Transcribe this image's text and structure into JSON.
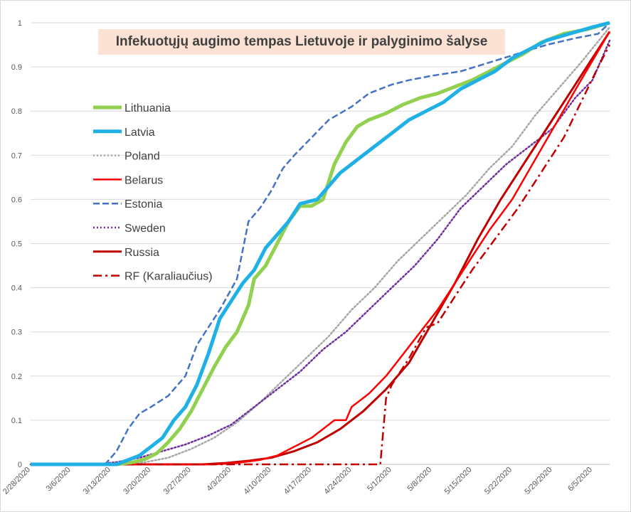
{
  "chart_data": {
    "type": "line",
    "title": "Infekuotųjų augimo tempas Lietuvoje ir palyginimo šalyse",
    "xlabel": "",
    "ylabel": "",
    "ylim": [
      0,
      1
    ],
    "y_ticks": [
      "0",
      "0.1",
      "0.2",
      "0.3",
      "0.4",
      "0.5",
      "0.6",
      "0.7",
      "0.8",
      "0.9",
      "1"
    ],
    "x_tick_labels": [
      "2/28/2020",
      "3/6/2020",
      "3/13/2020",
      "3/20/2020",
      "3/27/2020",
      "4/3/2020",
      "4/10/2020",
      "4/17/2020",
      "4/24/2020",
      "5/1/2020",
      "5/8/2020",
      "5/15/2020",
      "5/22/2020",
      "5/29/2020",
      "6/5/2020"
    ],
    "x_range": [
      "2/28/2020",
      "6/8/2020"
    ],
    "grid": "horizontal",
    "legend_position": "left",
    "series": [
      {
        "name": "Lithuania",
        "color": "#92d050",
        "style": "solid",
        "width": 5,
        "points": [
          [
            "2/28/2020",
            0
          ],
          [
            "3/14/2020",
            0
          ],
          [
            "3/17/2020",
            0.005
          ],
          [
            "3/19/2020",
            0.012
          ],
          [
            "3/21/2020",
            0.025
          ],
          [
            "3/23/2020",
            0.05
          ],
          [
            "3/25/2020",
            0.08
          ],
          [
            "3/27/2020",
            0.12
          ],
          [
            "3/29/2020",
            0.17
          ],
          [
            "3/31/2020",
            0.22
          ],
          [
            "4/2/2020",
            0.265
          ],
          [
            "4/4/2020",
            0.3
          ],
          [
            "4/6/2020",
            0.36
          ],
          [
            "4/7/2020",
            0.42
          ],
          [
            "4/9/2020",
            0.45
          ],
          [
            "4/11/2020",
            0.5
          ],
          [
            "4/13/2020",
            0.55
          ],
          [
            "4/15/2020",
            0.585
          ],
          [
            "4/17/2020",
            0.585
          ],
          [
            "4/19/2020",
            0.6
          ],
          [
            "4/21/2020",
            0.68
          ],
          [
            "4/23/2020",
            0.73
          ],
          [
            "4/25/2020",
            0.765
          ],
          [
            "4/27/2020",
            0.78
          ],
          [
            "4/30/2020",
            0.795
          ],
          [
            "5/3/2020",
            0.815
          ],
          [
            "5/6/2020",
            0.83
          ],
          [
            "5/9/2020",
            0.84
          ],
          [
            "5/12/2020",
            0.855
          ],
          [
            "5/15/2020",
            0.87
          ],
          [
            "5/18/2020",
            0.89
          ],
          [
            "5/21/2020",
            0.91
          ],
          [
            "5/24/2020",
            0.93
          ],
          [
            "5/27/2020",
            0.955
          ],
          [
            "5/31/2020",
            0.975
          ],
          [
            "6/4/2020",
            0.985
          ],
          [
            "6/8/2020",
            1
          ]
        ]
      },
      {
        "name": "Latvia",
        "color": "#1fb1e6",
        "style": "solid",
        "width": 5,
        "points": [
          [
            "2/28/2020",
            0
          ],
          [
            "3/14/2020",
            0
          ],
          [
            "3/16/2020",
            0.01
          ],
          [
            "3/18/2020",
            0.02
          ],
          [
            "3/20/2020",
            0.04
          ],
          [
            "3/22/2020",
            0.06
          ],
          [
            "3/24/2020",
            0.1
          ],
          [
            "3/26/2020",
            0.13
          ],
          [
            "3/28/2020",
            0.18
          ],
          [
            "3/30/2020",
            0.25
          ],
          [
            "4/1/2020",
            0.33
          ],
          [
            "4/3/2020",
            0.37
          ],
          [
            "4/5/2020",
            0.41
          ],
          [
            "4/7/2020",
            0.44
          ],
          [
            "4/9/2020",
            0.49
          ],
          [
            "4/11/2020",
            0.52
          ],
          [
            "4/13/2020",
            0.55
          ],
          [
            "4/15/2020",
            0.59
          ],
          [
            "4/18/2020",
            0.6
          ],
          [
            "4/20/2020",
            0.63
          ],
          [
            "4/22/2020",
            0.66
          ],
          [
            "4/25/2020",
            0.69
          ],
          [
            "4/28/2020",
            0.72
          ],
          [
            "5/1/2020",
            0.75
          ],
          [
            "5/4/2020",
            0.78
          ],
          [
            "5/7/2020",
            0.8
          ],
          [
            "5/10/2020",
            0.82
          ],
          [
            "5/13/2020",
            0.85
          ],
          [
            "5/16/2020",
            0.87
          ],
          [
            "5/19/2020",
            0.89
          ],
          [
            "5/22/2020",
            0.92
          ],
          [
            "5/25/2020",
            0.94
          ],
          [
            "5/28/2020",
            0.96
          ],
          [
            "6/1/2020",
            0.975
          ],
          [
            "6/5/2020",
            0.99
          ],
          [
            "6/8/2020",
            1
          ]
        ]
      },
      {
        "name": "Poland",
        "color": "#a6a6a6",
        "style": "dotted",
        "width": 2.5,
        "points": [
          [
            "2/28/2020",
            0
          ],
          [
            "3/15/2020",
            0
          ],
          [
            "3/19/2020",
            0.005
          ],
          [
            "3/23/2020",
            0.015
          ],
          [
            "3/27/2020",
            0.035
          ],
          [
            "3/31/2020",
            0.06
          ],
          [
            "4/4/2020",
            0.095
          ],
          [
            "4/8/2020",
            0.14
          ],
          [
            "4/12/2020",
            0.19
          ],
          [
            "4/16/2020",
            0.24
          ],
          [
            "4/20/2020",
            0.29
          ],
          [
            "4/24/2020",
            0.35
          ],
          [
            "4/28/2020",
            0.4
          ],
          [
            "5/2/2020",
            0.46
          ],
          [
            "5/6/2020",
            0.51
          ],
          [
            "5/10/2020",
            0.56
          ],
          [
            "5/14/2020",
            0.61
          ],
          [
            "5/18/2020",
            0.67
          ],
          [
            "5/22/2020",
            0.72
          ],
          [
            "5/26/2020",
            0.79
          ],
          [
            "5/30/2020",
            0.85
          ],
          [
            "6/3/2020",
            0.91
          ],
          [
            "6/8/2020",
            0.99
          ]
        ]
      },
      {
        "name": "Belarus",
        "color": "#ff0000",
        "style": "solid",
        "width": 2.5,
        "points": [
          [
            "2/28/2020",
            0
          ],
          [
            "3/31/2020",
            0
          ],
          [
            "4/4/2020",
            0.003
          ],
          [
            "4/8/2020",
            0.01
          ],
          [
            "4/11/2020",
            0.02
          ],
          [
            "4/14/2020",
            0.04
          ],
          [
            "4/17/2020",
            0.06
          ],
          [
            "4/20/2020",
            0.09
          ],
          [
            "4/21/2020",
            0.1
          ],
          [
            "4/23/2020",
            0.1
          ],
          [
            "4/24/2020",
            0.13
          ],
          [
            "4/27/2020",
            0.16
          ],
          [
            "4/30/2020",
            0.2
          ],
          [
            "5/3/2020",
            0.25
          ],
          [
            "5/6/2020",
            0.3
          ],
          [
            "5/9/2020",
            0.35
          ],
          [
            "5/12/2020",
            0.41
          ],
          [
            "5/15/2020",
            0.47
          ],
          [
            "5/18/2020",
            0.53
          ],
          [
            "5/22/2020",
            0.6
          ],
          [
            "5/26/2020",
            0.69
          ],
          [
            "5/30/2020",
            0.78
          ],
          [
            "6/3/2020",
            0.87
          ],
          [
            "6/8/2020",
            0.98
          ]
        ]
      },
      {
        "name": "Estonia",
        "color": "#4472c4",
        "style": "dashed",
        "width": 2.5,
        "points": [
          [
            "2/28/2020",
            0
          ],
          [
            "3/12/2020",
            0
          ],
          [
            "3/14/2020",
            0.03
          ],
          [
            "3/16/2020",
            0.08
          ],
          [
            "3/18/2020",
            0.115
          ],
          [
            "3/20/2020",
            0.13
          ],
          [
            "3/23/2020",
            0.155
          ],
          [
            "3/26/2020",
            0.2
          ],
          [
            "3/28/2020",
            0.27
          ],
          [
            "3/30/2020",
            0.31
          ],
          [
            "4/1/2020",
            0.35
          ],
          [
            "4/4/2020",
            0.42
          ],
          [
            "4/6/2020",
            0.55
          ],
          [
            "4/8/2020",
            0.58
          ],
          [
            "4/10/2020",
            0.62
          ],
          [
            "4/12/2020",
            0.67
          ],
          [
            "4/14/2020",
            0.7
          ],
          [
            "4/17/2020",
            0.74
          ],
          [
            "4/20/2020",
            0.78
          ],
          [
            "4/24/2020",
            0.81
          ],
          [
            "4/27/2020",
            0.84
          ],
          [
            "5/1/2020",
            0.86
          ],
          [
            "5/4/2020",
            0.87
          ],
          [
            "5/8/2020",
            0.88
          ],
          [
            "5/13/2020",
            0.89
          ],
          [
            "5/18/2020",
            0.91
          ],
          [
            "5/23/2020",
            0.93
          ],
          [
            "5/28/2020",
            0.95
          ],
          [
            "6/2/2020",
            0.965
          ],
          [
            "6/6/2020",
            0.975
          ],
          [
            "6/8/2020",
            1
          ]
        ]
      },
      {
        "name": "Sweden",
        "color": "#7030a0",
        "style": "dotted",
        "width": 2.5,
        "points": [
          [
            "2/28/2020",
            0
          ],
          [
            "3/10/2020",
            0
          ],
          [
            "3/14/2020",
            0.005
          ],
          [
            "3/18/2020",
            0.015
          ],
          [
            "3/22/2020",
            0.03
          ],
          [
            "3/26/2020",
            0.045
          ],
          [
            "3/30/2020",
            0.065
          ],
          [
            "4/3/2020",
            0.09
          ],
          [
            "4/7/2020",
            0.13
          ],
          [
            "4/11/2020",
            0.17
          ],
          [
            "4/15/2020",
            0.21
          ],
          [
            "4/19/2020",
            0.26
          ],
          [
            "4/23/2020",
            0.3
          ],
          [
            "4/27/2020",
            0.35
          ],
          [
            "5/1/2020",
            0.4
          ],
          [
            "5/5/2020",
            0.45
          ],
          [
            "5/9/2020",
            0.51
          ],
          [
            "5/13/2020",
            0.58
          ],
          [
            "5/17/2020",
            0.63
          ],
          [
            "5/21/2020",
            0.68
          ],
          [
            "5/25/2020",
            0.72
          ],
          [
            "5/29/2020",
            0.76
          ],
          [
            "6/2/2020",
            0.83
          ],
          [
            "6/5/2020",
            0.87
          ],
          [
            "6/8/2020",
            0.96
          ]
        ]
      },
      {
        "name": "Russia",
        "color": "#c00000",
        "style": "solid",
        "width": 3,
        "points": [
          [
            "2/28/2020",
            0
          ],
          [
            "3/29/2020",
            0
          ],
          [
            "4/2/2020",
            0.003
          ],
          [
            "4/6/2020",
            0.008
          ],
          [
            "4/10/2020",
            0.015
          ],
          [
            "4/14/2020",
            0.03
          ],
          [
            "4/18/2020",
            0.05
          ],
          [
            "4/22/2020",
            0.08
          ],
          [
            "4/26/2020",
            0.12
          ],
          [
            "4/30/2020",
            0.17
          ],
          [
            "5/4/2020",
            0.23
          ],
          [
            "5/8/2020",
            0.32
          ],
          [
            "5/12/2020",
            0.41
          ],
          [
            "5/16/2020",
            0.51
          ],
          [
            "5/20/2020",
            0.6
          ],
          [
            "5/24/2020",
            0.68
          ],
          [
            "5/28/2020",
            0.76
          ],
          [
            "6/1/2020",
            0.84
          ],
          [
            "6/4/2020",
            0.9
          ],
          [
            "6/8/2020",
            0.98
          ]
        ]
      },
      {
        "name": "RF (Karaliaučius)",
        "color": "#c00000",
        "style": "dashdot",
        "width": 2.5,
        "points": [
          [
            "2/28/2020",
            0
          ],
          [
            "4/29/2020",
            0
          ],
          [
            "4/30/2020",
            0.15
          ],
          [
            "5/1/2020",
            0.18
          ],
          [
            "5/4/2020",
            0.24
          ],
          [
            "5/7/2020",
            0.31
          ],
          [
            "5/9/2020",
            0.32
          ],
          [
            "5/12/2020",
            0.38
          ],
          [
            "5/15/2020",
            0.44
          ],
          [
            "5/19/2020",
            0.51
          ],
          [
            "5/23/2020",
            0.58
          ],
          [
            "5/27/2020",
            0.66
          ],
          [
            "5/31/2020",
            0.74
          ],
          [
            "6/3/2020",
            0.82
          ],
          [
            "6/6/2020",
            0.9
          ],
          [
            "6/8/2020",
            0.95
          ]
        ]
      }
    ]
  }
}
